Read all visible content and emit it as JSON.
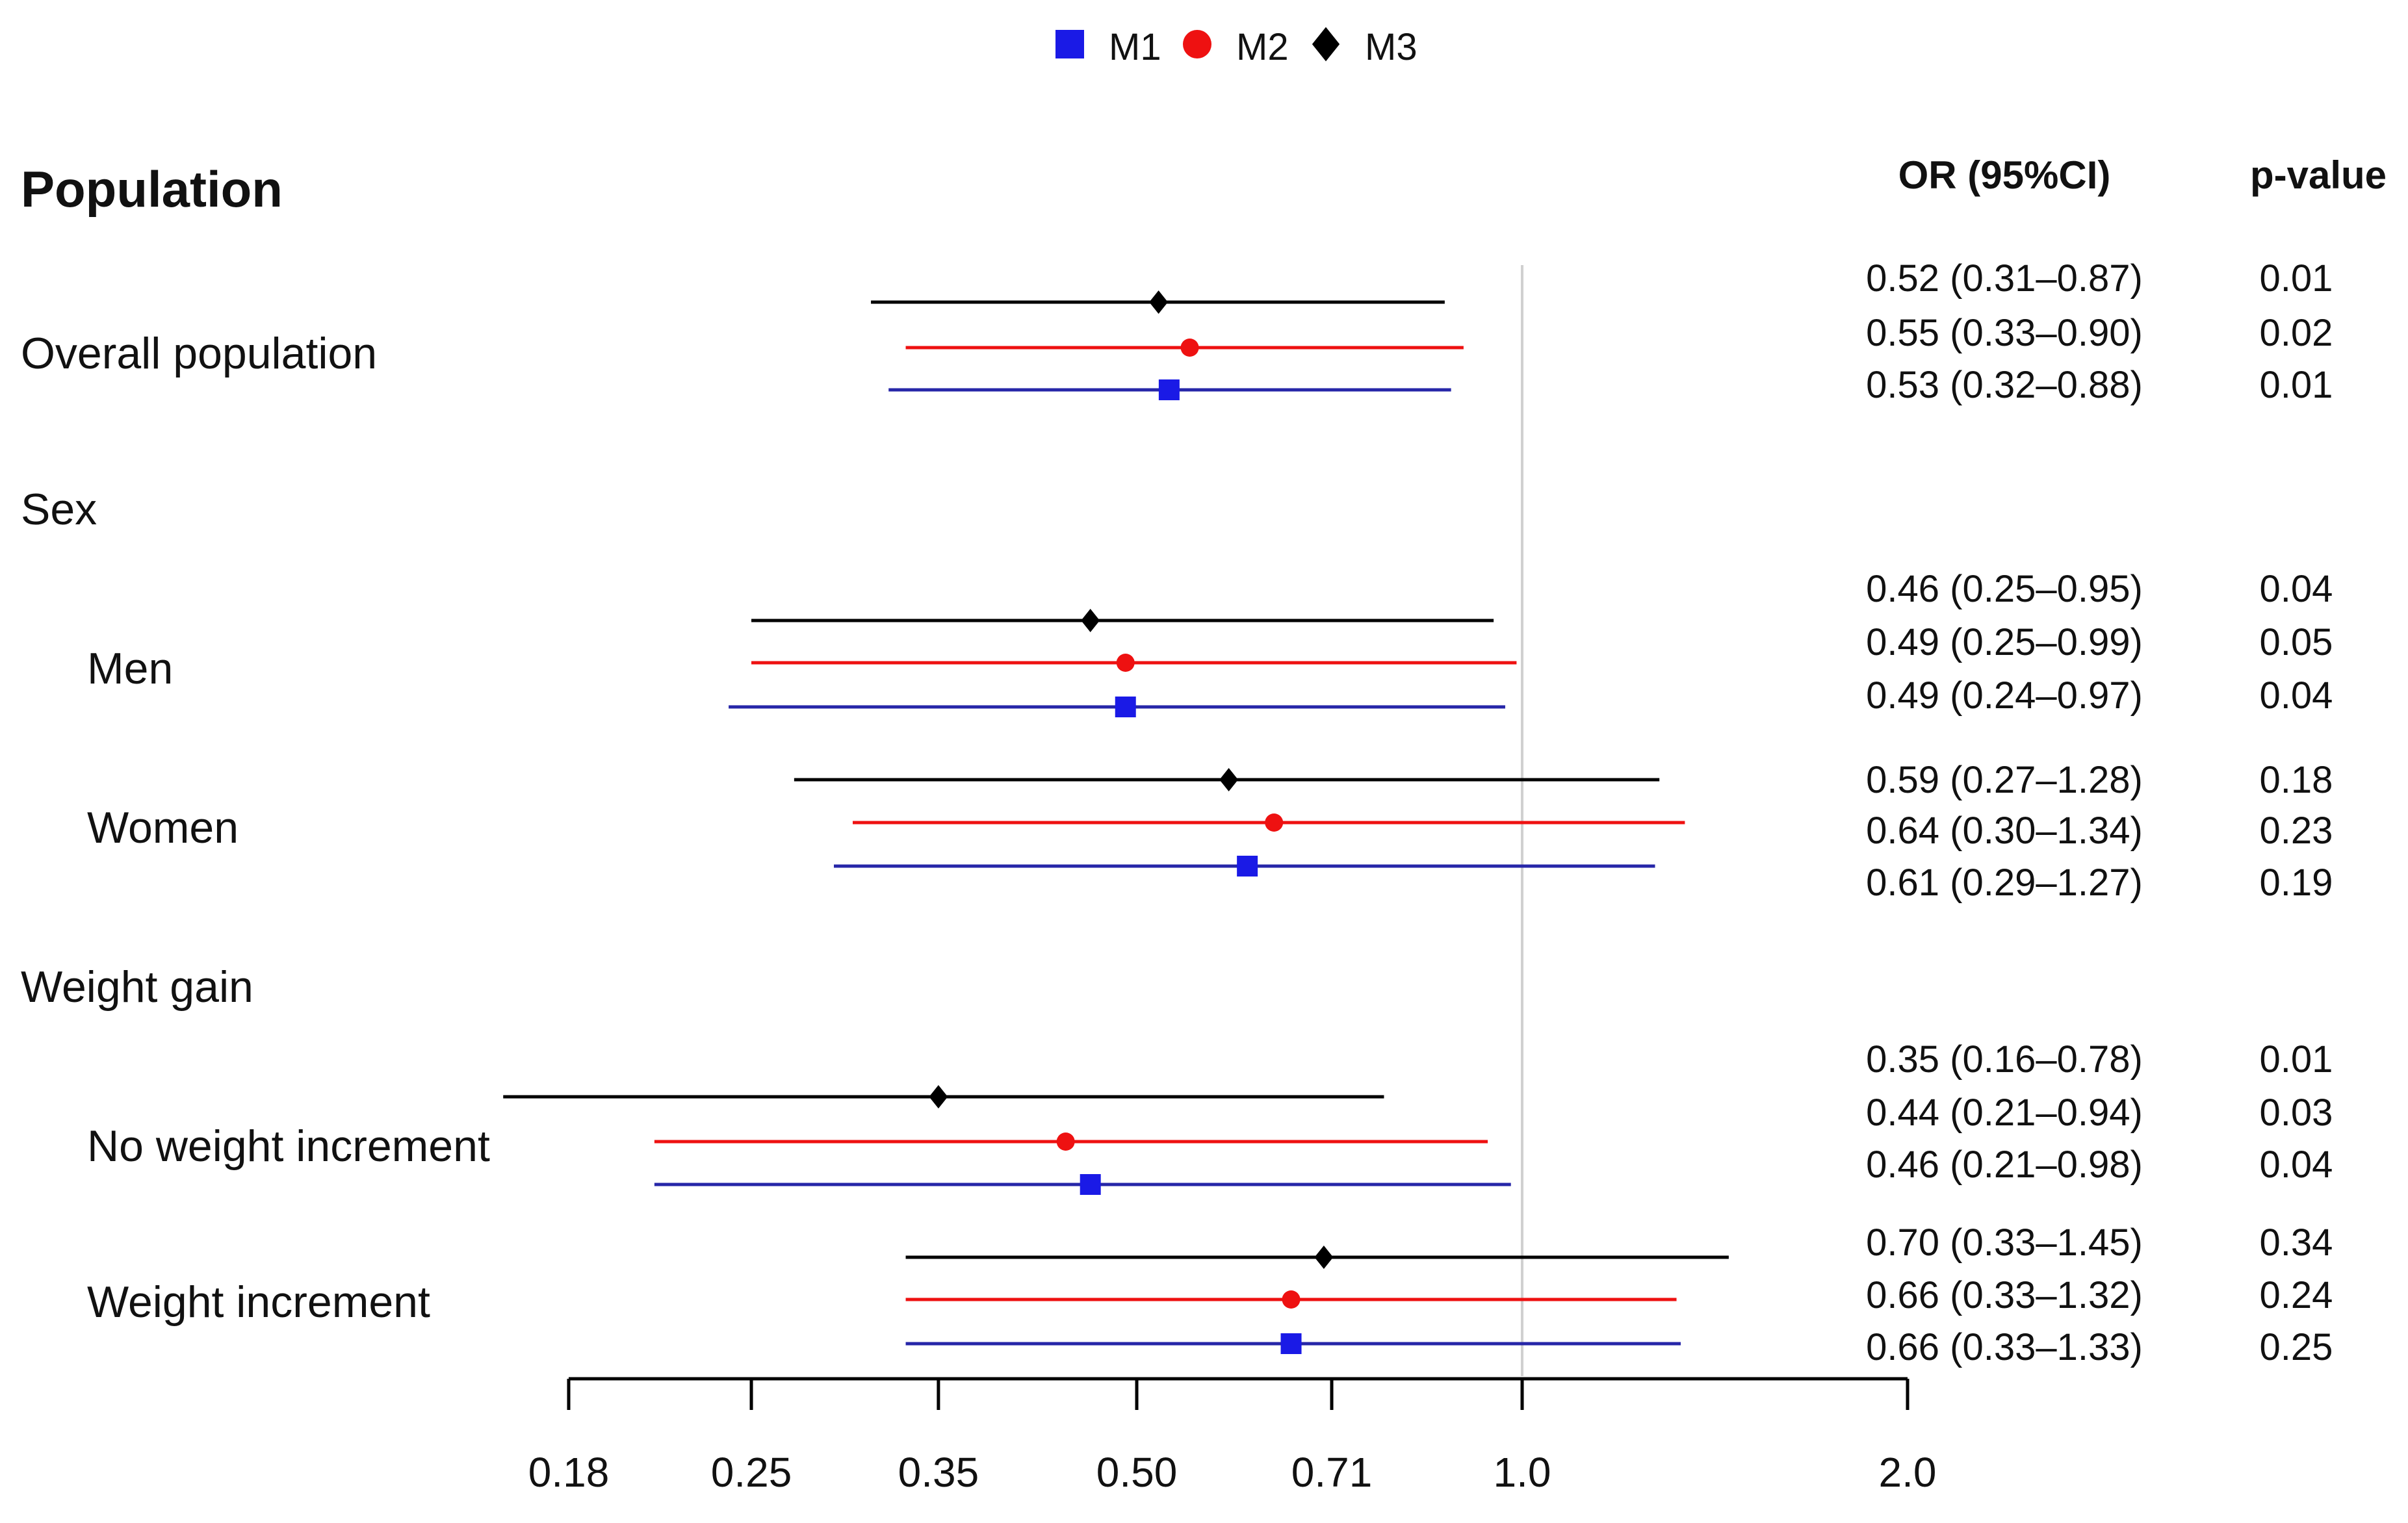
{
  "chart_data": {
    "type": "forest",
    "legend": {
      "placement": "top-center",
      "entries": [
        {
          "name": "M1",
          "color": "#1a1ae6",
          "marker": "square"
        },
        {
          "name": "M2",
          "color": "#ee1111",
          "marker": "circle"
        },
        {
          "name": "M3",
          "color": "#000000",
          "marker": "diamond"
        }
      ]
    },
    "headers": {
      "population": "Population",
      "or": "OR (95%CI)",
      "p": "p-value"
    },
    "x_axis": {
      "scale": "log",
      "range": [
        0.18,
        2.0
      ],
      "ticks": [
        0.18,
        0.25,
        0.35,
        0.5,
        0.71,
        1.0,
        2.0
      ],
      "tick_labels": [
        "0.18",
        "0.25",
        "0.35",
        "0.50",
        "0.71",
        "1.0",
        "2.0"
      ],
      "reference_line": 1.0
    },
    "rows": [
      {
        "label": "Overall population",
        "indent": 0,
        "estimates": [
          {
            "model": "M3",
            "or": 0.52,
            "lo": 0.31,
            "hi": 0.87,
            "text": "0.52 (0.31–0.87)",
            "p": "0.01"
          },
          {
            "model": "M2",
            "or": 0.55,
            "lo": 0.33,
            "hi": 0.9,
            "text": "0.55 (0.33–0.90)",
            "p": "0.02"
          },
          {
            "model": "M1",
            "or": 0.53,
            "lo": 0.32,
            "hi": 0.88,
            "text": "0.53 (0.32–0.88)",
            "p": "0.01"
          }
        ]
      },
      {
        "label": "Sex",
        "indent": 0,
        "estimates": []
      },
      {
        "label": "Men",
        "indent": 1,
        "estimates": [
          {
            "model": "M3",
            "or": 0.46,
            "lo": 0.25,
            "hi": 0.95,
            "text": "0.46 (0.25–0.95)",
            "p": "0.04"
          },
          {
            "model": "M2",
            "or": 0.49,
            "lo": 0.25,
            "hi": 0.99,
            "text": "0.49 (0.25–0.99)",
            "p": "0.05"
          },
          {
            "model": "M1",
            "or": 0.49,
            "lo": 0.24,
            "hi": 0.97,
            "text": "0.49 (0.24–0.97)",
            "p": "0.04"
          }
        ]
      },
      {
        "label": "Women",
        "indent": 1,
        "estimates": [
          {
            "model": "M3",
            "or": 0.59,
            "lo": 0.27,
            "hi": 1.28,
            "text": "0.59 (0.27–1.28)",
            "p": "0.18"
          },
          {
            "model": "M2",
            "or": 0.64,
            "lo": 0.3,
            "hi": 1.34,
            "text": "0.64 (0.30–1.34)",
            "p": "0.23"
          },
          {
            "model": "M1",
            "or": 0.61,
            "lo": 0.29,
            "hi": 1.27,
            "text": "0.61 (0.29–1.27)",
            "p": "0.19"
          }
        ]
      },
      {
        "label": "Weight gain",
        "indent": 0,
        "estimates": []
      },
      {
        "label": "No weight increment",
        "indent": 1,
        "estimates": [
          {
            "model": "M3",
            "or": 0.35,
            "lo": 0.16,
            "hi": 0.78,
            "text": "0.35 (0.16–0.78)",
            "p": "0.01"
          },
          {
            "model": "M2",
            "or": 0.44,
            "lo": 0.21,
            "hi": 0.94,
            "text": "0.44 (0.21–0.94)",
            "p": "0.03"
          },
          {
            "model": "M1",
            "or": 0.46,
            "lo": 0.21,
            "hi": 0.98,
            "text": "0.46 (0.21–0.98)",
            "p": "0.04"
          }
        ]
      },
      {
        "label": "Weight increment",
        "indent": 1,
        "estimates": [
          {
            "model": "M3",
            "or": 0.7,
            "lo": 0.33,
            "hi": 1.45,
            "text": "0.70 (0.33–1.45)",
            "p": "0.34"
          },
          {
            "model": "M2",
            "or": 0.66,
            "lo": 0.33,
            "hi": 1.32,
            "text": "0.66 (0.33–1.32)",
            "p": "0.24"
          },
          {
            "model": "M1",
            "or": 0.66,
            "lo": 0.33,
            "hi": 1.33,
            "text": "0.66 (0.33–1.33)",
            "p": "0.25"
          }
        ]
      }
    ]
  }
}
